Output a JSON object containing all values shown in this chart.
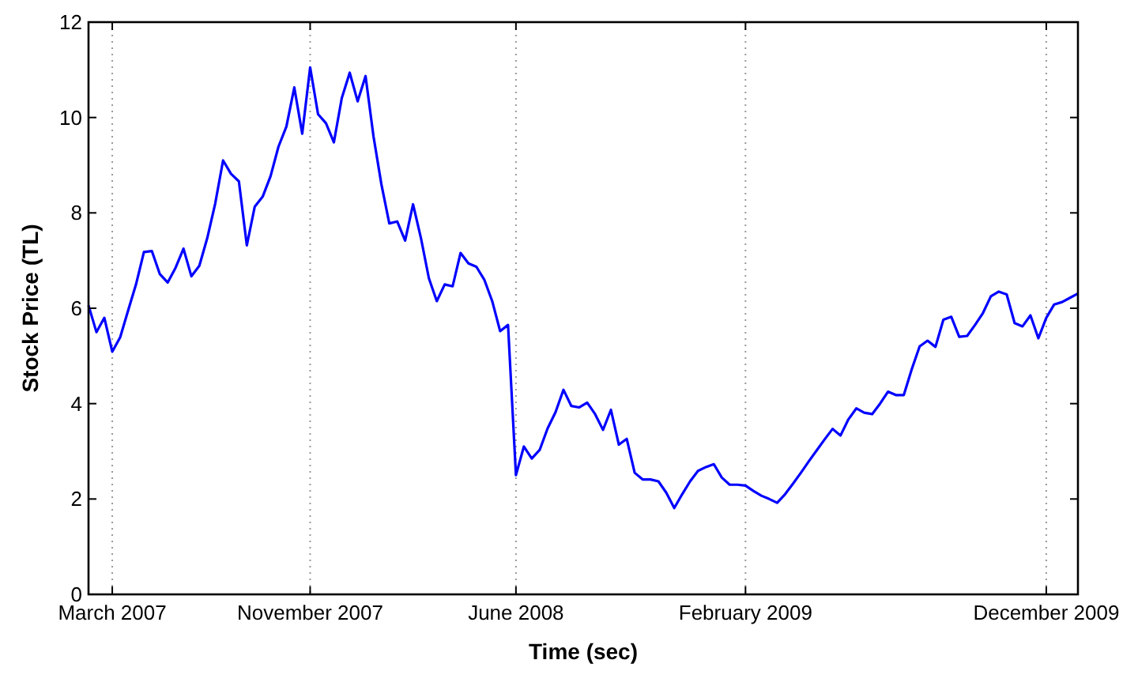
{
  "chart_data": {
    "type": "line",
    "xlabel": "Time (sec)",
    "ylabel": "Stock Price (TL)",
    "categories": [
      null,
      null,
      null,
      "March 2007",
      null,
      null,
      null,
      null,
      null,
      null,
      null,
      null,
      null,
      null,
      null,
      null,
      null,
      null,
      null,
      null,
      null,
      null,
      null,
      null,
      null,
      null,
      null,
      null,
      "November 2007",
      null,
      null,
      null,
      null,
      null,
      null,
      null,
      null,
      null,
      null,
      null,
      null,
      null,
      null,
      null,
      null,
      null,
      null,
      null,
      null,
      null,
      null,
      null,
      null,
      null,
      "June 2008",
      null,
      null,
      null,
      null,
      null,
      null,
      null,
      null,
      null,
      null,
      null,
      null,
      null,
      null,
      null,
      null,
      null,
      null,
      null,
      null,
      null,
      null,
      null,
      null,
      null,
      null,
      null,
      null,
      "February 2009",
      null,
      null,
      null,
      null,
      null,
      null,
      null,
      null,
      null,
      null,
      null,
      null,
      null,
      null,
      null,
      null,
      null,
      null,
      null,
      null,
      null,
      null,
      null,
      null,
      null,
      null,
      null,
      null,
      null,
      null,
      null,
      null,
      null,
      null,
      null,
      null,
      null,
      "December 2009",
      null,
      null,
      null,
      null
    ],
    "ylim": [
      0,
      12
    ],
    "yticks": [
      0,
      2,
      4,
      6,
      8,
      10,
      12
    ],
    "grid": "x",
    "marker": "none",
    "line_style": "solid",
    "series": [
      {
        "color": "#0000ff",
        "values": [
          6.06,
          5.5,
          5.8,
          5.09,
          5.39,
          5.95,
          6.5,
          7.18,
          7.2,
          6.72,
          6.54,
          6.85,
          7.25,
          6.67,
          6.89,
          7.47,
          8.19,
          9.1,
          8.82,
          8.66,
          7.32,
          8.13,
          8.34,
          8.77,
          9.39,
          9.81,
          10.63,
          9.66,
          11.05,
          10.07,
          9.88,
          9.48,
          10.41,
          10.94,
          10.34,
          10.87,
          9.61,
          8.6,
          7.78,
          7.82,
          7.42,
          8.18,
          7.47,
          6.63,
          6.15,
          6.5,
          6.46,
          7.16,
          6.94,
          6.87,
          6.6,
          6.15,
          5.52,
          5.65,
          2.5,
          3.1,
          2.85,
          3.03,
          3.48,
          3.82,
          4.29,
          3.95,
          3.92,
          4.02,
          3.78,
          3.45,
          3.87,
          3.14,
          3.26,
          2.55,
          2.41,
          2.41,
          2.37,
          2.13,
          1.81,
          2.1,
          2.37,
          2.59,
          2.67,
          2.73,
          2.45,
          2.3,
          2.3,
          2.28,
          2.17,
          2.07,
          2.0,
          1.92,
          2.1,
          2.32,
          2.55,
          2.79,
          3.02,
          3.25,
          3.47,
          3.33,
          3.67,
          3.9,
          3.81,
          3.78,
          4.0,
          4.25,
          4.18,
          4.18,
          4.72,
          5.2,
          5.32,
          5.19,
          5.76,
          5.82,
          5.4,
          5.42,
          5.65,
          5.9,
          6.25,
          6.35,
          6.29,
          5.69,
          5.62,
          5.85,
          5.37,
          5.8,
          6.08,
          6.13,
          6.22,
          6.31
        ]
      }
    ]
  }
}
